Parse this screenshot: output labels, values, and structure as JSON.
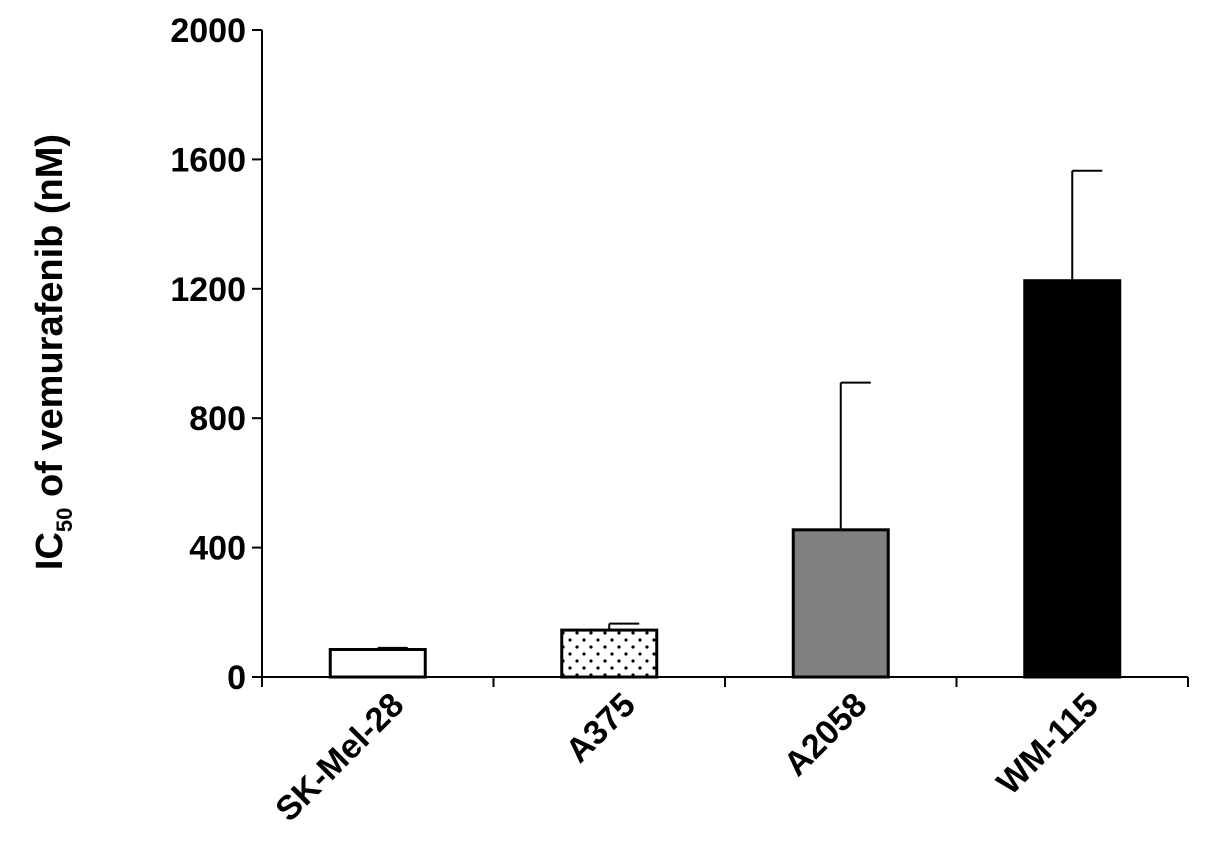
{
  "chart_data": {
    "type": "bar",
    "categories": [
      "SK-Mel-28",
      "A375",
      "A2058",
      "WM-115"
    ],
    "values": [
      85,
      145,
      455,
      1225
    ],
    "errors": [
      5,
      20,
      455,
      340
    ],
    "ylim": [
      0,
      2000
    ],
    "yticks": [
      "0",
      "400",
      "800",
      "1200",
      "1600",
      "2000"
    ],
    "ylabel_main": "IC",
    "ylabel_sub": "50",
    "ylabel_rest": " of vemurafenib (nM)",
    "xlabel": "",
    "grid": false,
    "legend": "none",
    "bar_fills": [
      "white",
      "dotted",
      "gray",
      "black"
    ],
    "colors": {
      "gray": "#808080",
      "black": "#000000",
      "white": "#ffffff"
    }
  }
}
